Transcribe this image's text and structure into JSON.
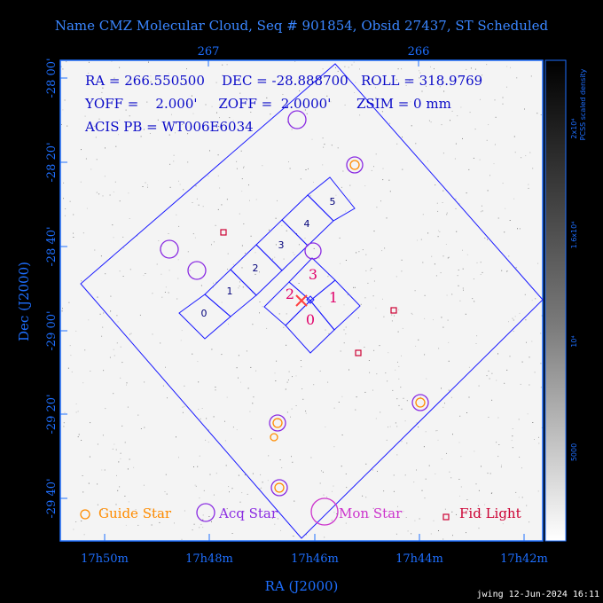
{
  "title": "Name CMZ Molecular Cloud, Seq # 901854, Obsid 27437, ST Scheduled",
  "info": {
    "line1": "RA = 266.550500    DEC = -28.888700   ROLL = 318.9769",
    "line2": "YOFF =    2.000'     ZOFF =  2.0000'      ZSIM = 0 mm",
    "line3": "ACIS PB = WT006E6034"
  },
  "top_ticks": [
    "267",
    "266"
  ],
  "dec_ticks": [
    "-28 00'",
    "-28 20'",
    "-28 40'",
    "-29 00'",
    "-29 20'",
    "-29 40'"
  ],
  "ra_ticks": [
    "17h50m",
    "17h48m",
    "17h46m",
    "17h44m",
    "17h42m"
  ],
  "ra_label": "RA (J2000)",
  "dec_label": "Dec (J2000)",
  "chips_s": [
    "0",
    "1",
    "2",
    "3",
    "4",
    "5"
  ],
  "chips_i": [
    "0",
    "1",
    "2",
    "3"
  ],
  "legend": {
    "guide": "Guide Star",
    "acq": "Acq Star",
    "mon": "Mon Star",
    "fid": "Fid Light"
  },
  "colorbar": {
    "title": "PCSS scaled density",
    "ticks": [
      "2x10⁴",
      "1.6x10⁴",
      "10⁴",
      "5000"
    ]
  },
  "footer": "jwing 12-Jun-2024 16:11",
  "colors": {
    "frame": "#1e6fff",
    "outline": "#1a1aff",
    "acq": "#8a2be2",
    "guide": "#ff8c00",
    "mon": "#cc33cc",
    "fid": "#cc0033",
    "target": "#ff4040"
  }
}
